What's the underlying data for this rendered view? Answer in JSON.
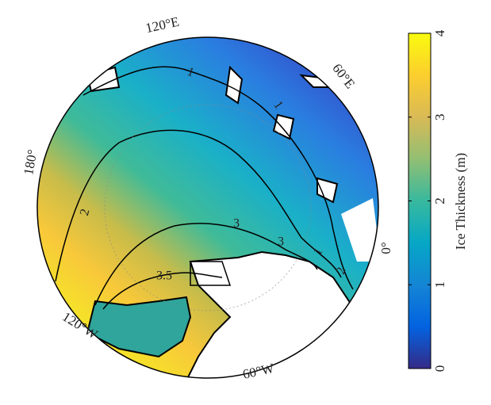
{
  "map": {
    "longitude_labels": [
      "120°E",
      "60°E",
      "180°",
      "0°",
      "120°W",
      "60°W"
    ],
    "contour_labels": [
      "1",
      "1",
      "2",
      "3",
      "3",
      "2",
      "1",
      "3.5"
    ],
    "colorbar": {
      "label": "Ice Thickness (m)",
      "range": [
        0,
        4
      ],
      "ticks": [
        0,
        1,
        2,
        3,
        4
      ],
      "colormap": [
        "#352a87",
        "#0363e1",
        "#1485d4",
        "#06a7c6",
        "#38b99e",
        "#92bf73",
        "#d9ba56",
        "#fcce2e",
        "#f9fb0e"
      ]
    }
  }
}
